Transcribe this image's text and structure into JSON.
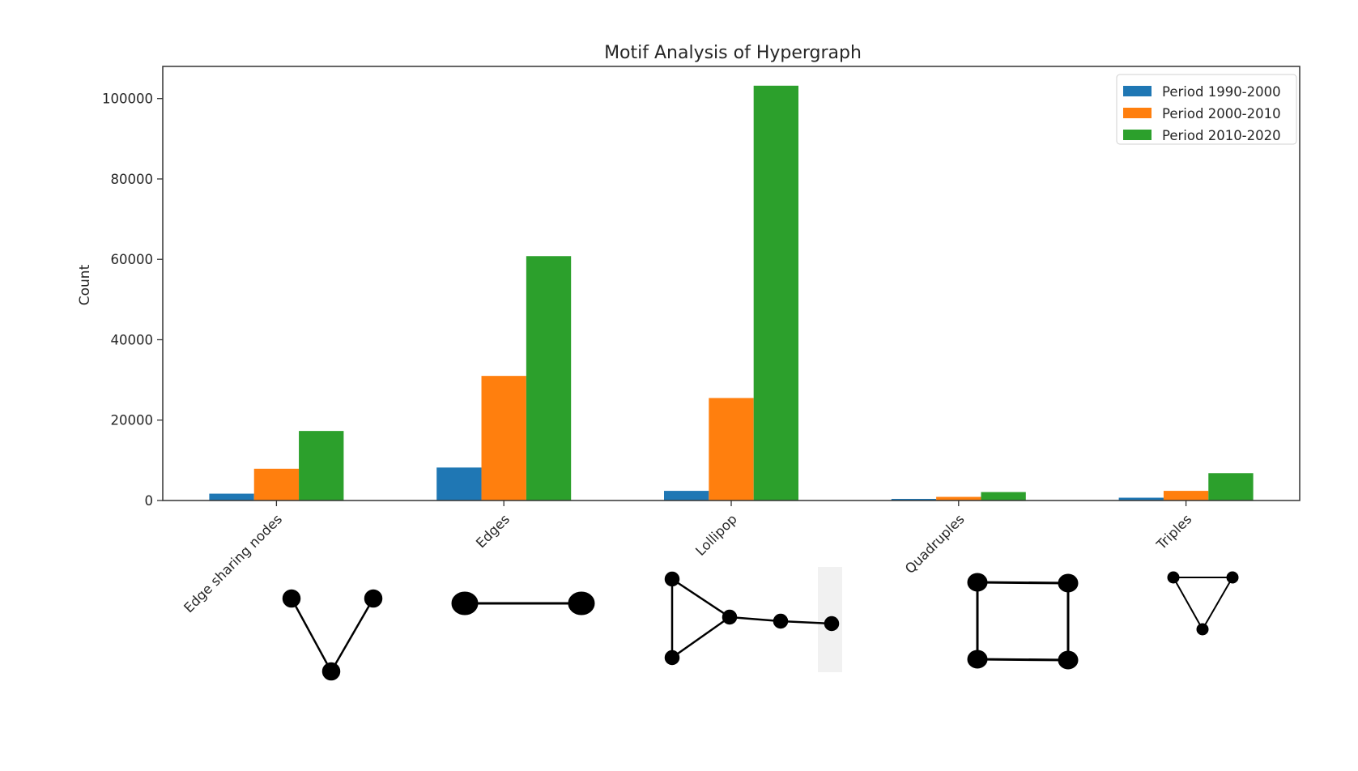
{
  "chart_data": {
    "type": "bar",
    "title": "Motif Analysis of Hypergraph",
    "xlabel": "",
    "ylabel": "Count",
    "ylim": [
      0,
      108000
    ],
    "yticks": [
      0,
      20000,
      40000,
      60000,
      80000,
      100000
    ],
    "grid": false,
    "legend_position": "top-right",
    "categories": [
      "Edge sharing nodes",
      "Edges",
      "Lollipop",
      "Quadruples",
      "Triples"
    ],
    "series": [
      {
        "name": "Period 1990-2000",
        "color": "#1f77b4",
        "values": [
          1700,
          8200,
          2400,
          400,
          700
        ]
      },
      {
        "name": "Period 2000-2010",
        "color": "#ff7f0e",
        "values": [
          7900,
          31000,
          25500,
          900,
          2400
        ]
      },
      {
        "name": "Period 2010-2020",
        "color": "#2ca02c",
        "values": [
          17300,
          60800,
          103200,
          2100,
          6800
        ]
      }
    ],
    "motif_icons": [
      "v-shape-motif-icon",
      "edge-motif-icon",
      "lollipop-motif-icon",
      "square-motif-icon",
      "triangle-motif-icon"
    ]
  }
}
